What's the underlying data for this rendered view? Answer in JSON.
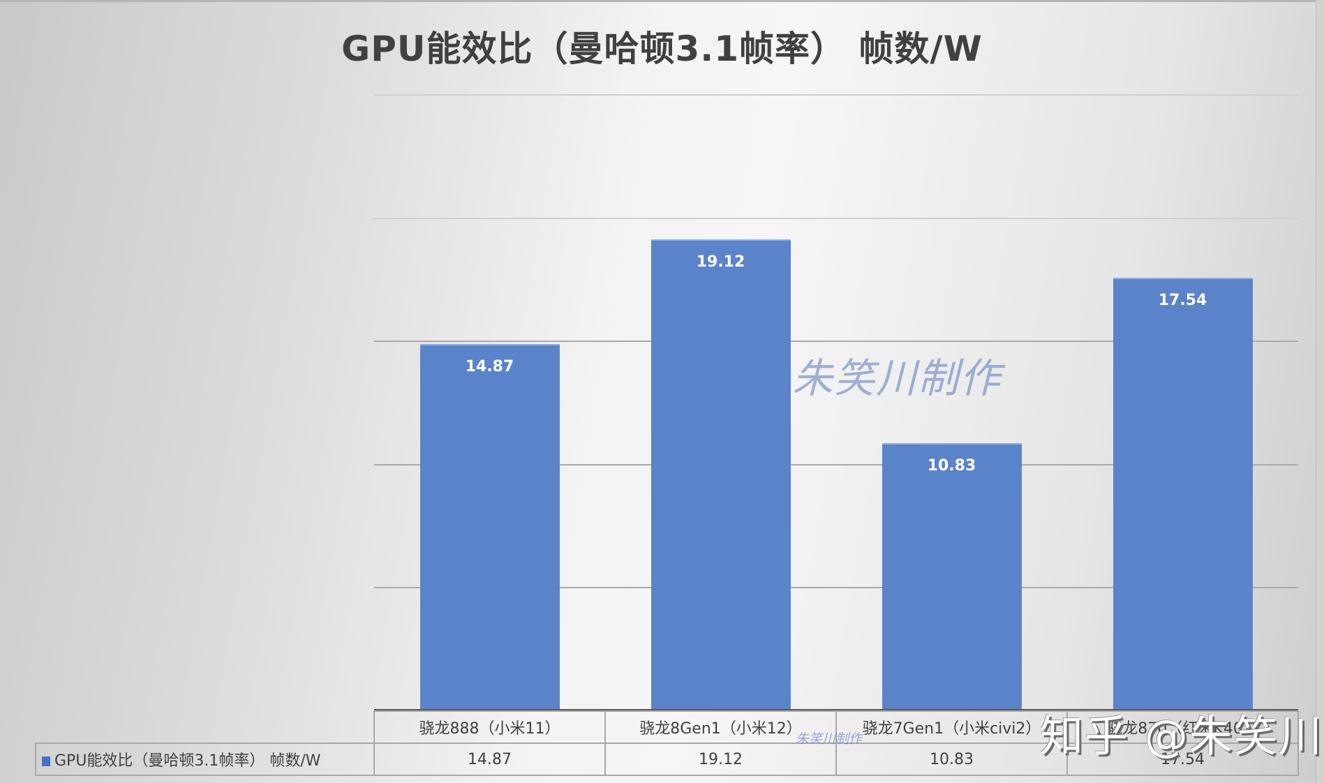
{
  "chart_data": {
    "type": "bar",
    "title": "GPU能效比（曼哈顿3.1帧率） 帧数/W",
    "categories": [
      "骁龙888（小米11）",
      "骁龙8Gen1（小米12）",
      "骁龙7Gen1（小米civi2）",
      "骁龙870（红米K40）"
    ],
    "series": [
      {
        "name": "GPU能效比（曼哈顿3.1帧率） 帧数/W",
        "values": [
          14.87,
          19.12,
          10.83,
          17.54
        ],
        "color": "#5b83c9"
      }
    ],
    "value_labels": [
      "14.87",
      "19.12",
      "10.83",
      "17.54"
    ],
    "xlabel": "",
    "ylabel": "",
    "ylim": [
      0,
      25
    ],
    "gridlines": [
      5,
      10,
      15,
      20,
      25
    ],
    "grid": true,
    "y_axis_labels_visible": false,
    "legend_position": "data-table",
    "data_table": true
  },
  "table": {
    "series_label": "GPU能效比（曼哈顿3.1帧率） 帧数/W",
    "categories": [
      "骁龙888（小米11）",
      "骁龙8Gen1（小米12）",
      "骁龙7Gen1（小米civi2）",
      "骁龙870（红米K40）"
    ],
    "values": [
      "14.87",
      "19.12",
      "10.83",
      "17.54"
    ]
  },
  "watermarks": {
    "center": "朱笑川制作",
    "small": "朱笑川制作",
    "zhihu": "知乎 @朱笑川"
  }
}
